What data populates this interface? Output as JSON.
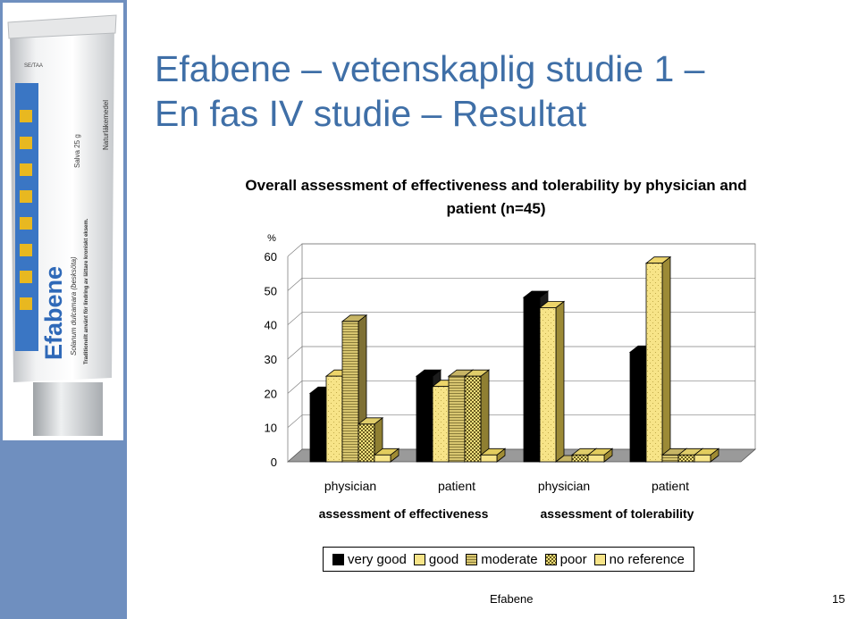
{
  "slide": {
    "title_line1": "Efabene – vetenskaplig studie 1 –",
    "title_line2": "En fas IV studie – Resultat",
    "footer_center": "Efabene",
    "footer_page": "15"
  },
  "product_image": {
    "brand": "Efabene",
    "tag": "SE/TAA",
    "weight": "Salva 25 g",
    "subtitle": "Solanum dulcamara (besksöta)",
    "line1": "Traditionellt använt för lindring av lättare kroniskt eksem.",
    "line2": "Naturläkemedel"
  },
  "colors": {
    "very_good": "#000000",
    "good": "#f7e488",
    "moderate": "#d8c670",
    "poor": "#f3e27e",
    "no_reference": "#f7e488",
    "title": "#3f6fa7",
    "sidebar": "#6f8fbf"
  },
  "chart_data": {
    "type": "bar",
    "title_line1": "Overall assessment of effectiveness and tolerability by physician and",
    "title_line2": "patient (n=45)",
    "ylabel": "%",
    "ylim": [
      0,
      60
    ],
    "yticks": [
      "0",
      "10",
      "20",
      "30",
      "40",
      "50",
      "60"
    ],
    "categories": [
      "physician",
      "patient",
      "physician",
      "patient"
    ],
    "group_labels": [
      "assessment of effectiveness",
      "assessment of tolerability"
    ],
    "series": [
      {
        "name": "very good",
        "values": [
          20,
          25,
          48,
          32
        ]
      },
      {
        "name": "good",
        "values": [
          25,
          22,
          45,
          58
        ]
      },
      {
        "name": "moderate",
        "values": [
          41,
          25,
          0,
          2
        ]
      },
      {
        "name": "poor",
        "values": [
          11,
          25,
          2,
          2
        ]
      },
      {
        "name": "no reference",
        "values": [
          2,
          2,
          2,
          2
        ]
      }
    ],
    "legend_position": "bottom",
    "grid": true
  }
}
